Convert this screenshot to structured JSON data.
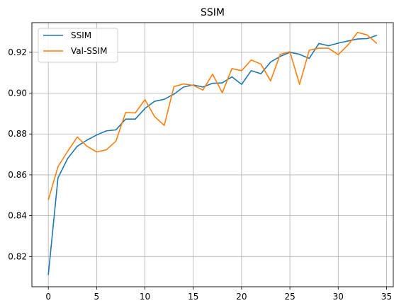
{
  "chart_data": {
    "type": "line",
    "title": "SSIM",
    "xlabel": "",
    "ylabel": "",
    "xlim": [
      -1.7,
      35.7
    ],
    "ylim": [
      0.8052,
      0.9345
    ],
    "xticks": [
      0,
      5,
      10,
      15,
      20,
      25,
      30,
      35
    ],
    "yticks": [
      0.82,
      0.84,
      0.86,
      0.88,
      0.9,
      0.92
    ],
    "ytick_labels": [
      "0.82",
      "0.84",
      "0.86",
      "0.88",
      "0.90",
      "0.92"
    ],
    "grid": true,
    "legend_position": "top-left",
    "x": [
      0,
      1,
      2,
      3,
      4,
      5,
      6,
      7,
      8,
      9,
      10,
      11,
      12,
      13,
      14,
      15,
      16,
      17,
      18,
      19,
      20,
      21,
      22,
      23,
      24,
      25,
      26,
      27,
      28,
      29,
      30,
      31,
      32,
      33,
      34
    ],
    "series": [
      {
        "name": "SSIM",
        "color": "#1f77b4",
        "values": [
          0.811,
          0.8585,
          0.868,
          0.874,
          0.877,
          0.8795,
          0.8815,
          0.882,
          0.8873,
          0.8873,
          0.8925,
          0.896,
          0.897,
          0.8995,
          0.903,
          0.904,
          0.903,
          0.9048,
          0.905,
          0.908,
          0.9043,
          0.911,
          0.9095,
          0.9152,
          0.918,
          0.92,
          0.919,
          0.917,
          0.9243,
          0.9232,
          0.9245,
          0.9255,
          0.9265,
          0.9267,
          0.9283
        ]
      },
      {
        "name": "Val-SSIM",
        "color": "#ff7f0e",
        "values": [
          0.8477,
          0.864,
          0.8715,
          0.8785,
          0.874,
          0.8712,
          0.8722,
          0.8765,
          0.8905,
          0.8903,
          0.8968,
          0.8885,
          0.8842,
          0.9032,
          0.9045,
          0.9038,
          0.9015,
          0.9093,
          0.9002,
          0.912,
          0.911,
          0.9162,
          0.9142,
          0.906,
          0.919,
          0.9203,
          0.9043,
          0.921,
          0.922,
          0.922,
          0.9188,
          0.9235,
          0.9297,
          0.9285,
          0.9243
        ]
      }
    ]
  }
}
